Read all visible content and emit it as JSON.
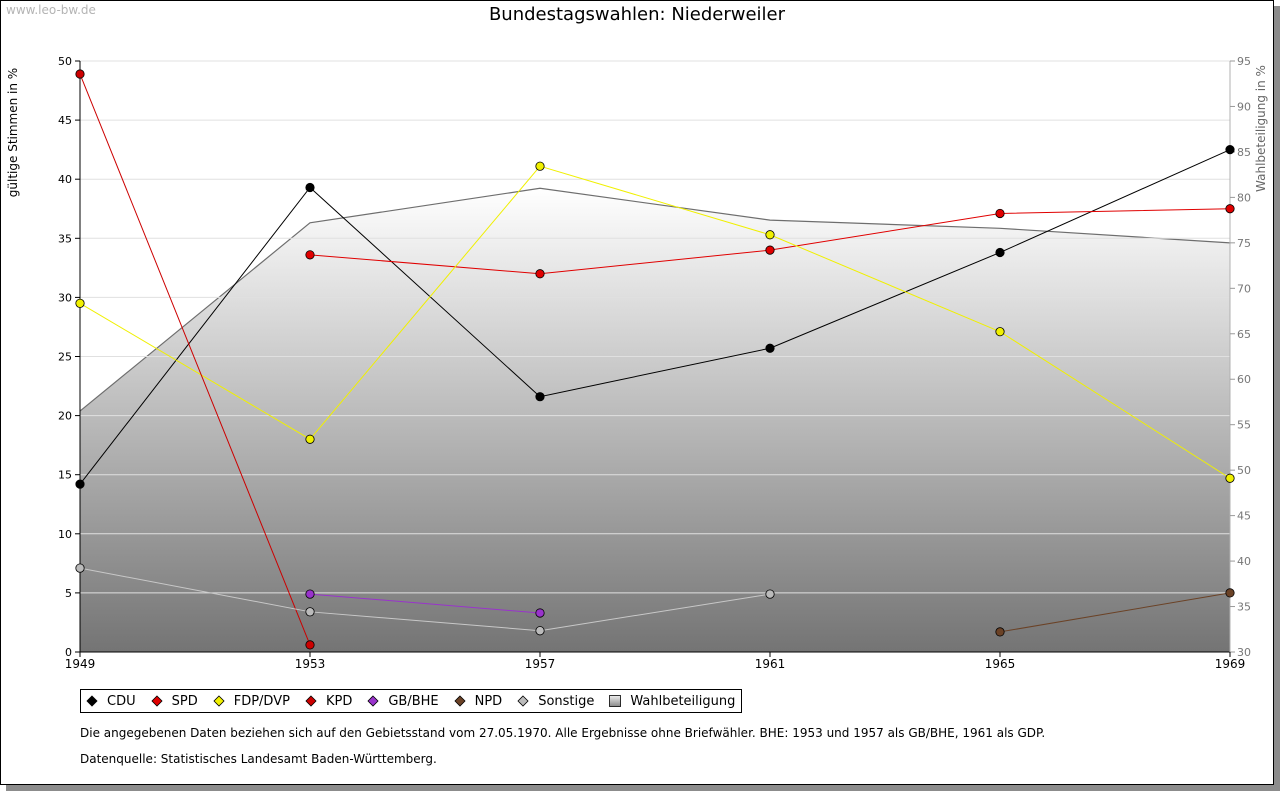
{
  "watermark": "www.leo-bw.de",
  "footnote": "Die angegebenen Daten beziehen sich auf den Gebietsstand vom 27.05.1970. Alle Ergebnisse ohne Briefwähler. BHE: 1953 und 1957 als GB/BHE, 1961 als GDP.",
  "source": "Datenquelle: Statistisches Landesamt Baden-Württemberg.",
  "chart_data": {
    "type": "line",
    "title": "Bundestagswahlen: Niederweiler",
    "ylabel": "gültige Stimmen in %",
    "y2label": "Wahlbeteiligung in %",
    "x": [
      1949,
      1953,
      1957,
      1961,
      1965,
      1969
    ],
    "ylim": [
      0,
      50
    ],
    "y2lim": [
      30,
      95
    ],
    "yticks": [
      0,
      5,
      10,
      15,
      20,
      25,
      30,
      35,
      40,
      45,
      50
    ],
    "y2ticks": [
      30,
      35,
      40,
      45,
      50,
      55,
      60,
      65,
      70,
      75,
      80,
      85,
      90,
      95
    ],
    "grid": true,
    "legend_position": "bottom",
    "series": [
      {
        "name": "CDU",
        "color": "#000000",
        "values": [
          14.2,
          39.3,
          21.6,
          25.7,
          33.8,
          42.5
        ]
      },
      {
        "name": "SPD",
        "color": "#e00000",
        "values": [
          null,
          33.6,
          32.0,
          34.0,
          37.1,
          37.5
        ]
      },
      {
        "name": "FDP/DVP",
        "color": "#f0f000",
        "values": [
          29.5,
          18.0,
          41.1,
          35.3,
          27.1,
          14.7
        ]
      },
      {
        "name": "KPD",
        "color": "#cc0000",
        "values": [
          48.9,
          0.6,
          null,
          null,
          null,
          null
        ]
      },
      {
        "name": "GB/BHE",
        "color": "#9933cc",
        "values": [
          null,
          4.9,
          3.3,
          null,
          null,
          null
        ]
      },
      {
        "name": "NPD",
        "color": "#6b4226",
        "values": [
          null,
          null,
          null,
          null,
          1.7,
          5.0
        ]
      },
      {
        "name": "Sonstige",
        "color": "#bbbbbb",
        "values": [
          7.1,
          3.4,
          1.8,
          4.9,
          null,
          null
        ]
      }
    ],
    "turnout": {
      "name": "Wahlbeteiligung",
      "values": [
        56.5,
        77.2,
        81.0,
        77.5,
        76.6,
        75.0
      ]
    }
  }
}
